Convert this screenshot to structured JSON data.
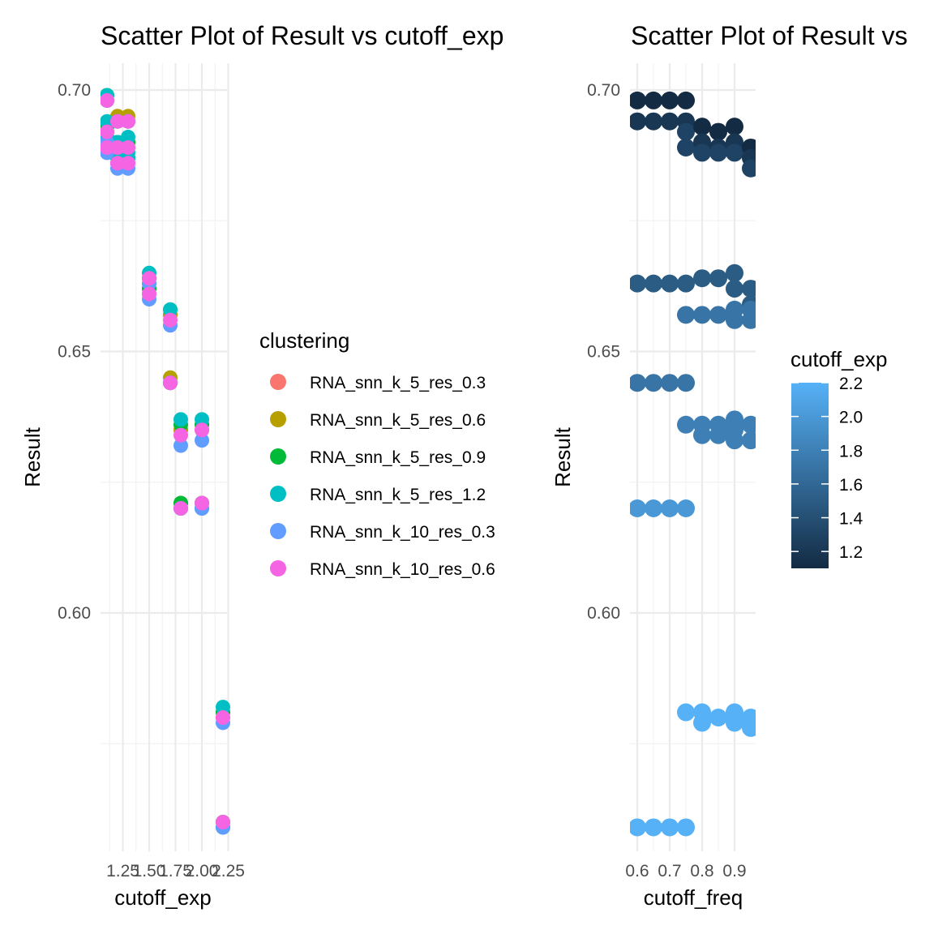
{
  "chart_data": [
    {
      "type": "scatter",
      "title": "Scatter Plot of Result vs cutoff_exp",
      "xlabel": "cutoff_exp",
      "ylabel": "Result",
      "x_ticks": [
        "1.25",
        "1.50",
        "1.75",
        "2.00",
        "2.25"
      ],
      "x_tick_values": [
        1.25,
        1.5,
        1.75,
        2.0,
        2.25
      ],
      "y_ticks": [
        "0.60",
        "0.65",
        "0.70"
      ],
      "y_tick_values": [
        0.6,
        0.65,
        0.7
      ],
      "xlim": [
        1.1,
        2.3
      ],
      "ylim": [
        0.555,
        0.703
      ],
      "legend": {
        "title": "clustering",
        "position": "right",
        "entries": [
          {
            "name": "RNA_snn_k_5_res_0.3",
            "color": "#F8766D"
          },
          {
            "name": "RNA_snn_k_5_res_0.6",
            "color": "#B79F00"
          },
          {
            "name": "RNA_snn_k_5_res_0.9",
            "color": "#00BA38"
          },
          {
            "name": "RNA_snn_k_5_res_1.2",
            "color": "#00BFC4"
          },
          {
            "name": "RNA_snn_k_10_res_0.3",
            "color": "#619CFF"
          },
          {
            "name": "RNA_snn_k_10_res_0.6",
            "color": "#F564E3"
          }
        ]
      },
      "series": [
        {
          "name": "RNA_snn_k_5_res_0.3",
          "color": "#F8766D",
          "x": [
            1.1,
            1.1,
            1.1,
            1.2,
            1.2,
            1.2,
            1.3,
            1.3,
            1.3,
            1.5,
            1.5,
            1.7,
            1.7,
            1.8,
            1.8,
            2.0,
            2.0,
            2.2,
            2.2
          ],
          "y": [
            0.698,
            0.691,
            0.689,
            0.694,
            0.689,
            0.686,
            0.694,
            0.689,
            0.686,
            0.664,
            0.661,
            0.657,
            0.644,
            0.635,
            0.62,
            0.635,
            0.621,
            0.58,
            0.559
          ]
        },
        {
          "name": "RNA_snn_k_5_res_0.6",
          "color": "#B79F00",
          "x": [
            1.1,
            1.1,
            1.1,
            1.2,
            1.2,
            1.2,
            1.3,
            1.3,
            1.3,
            1.5,
            1.5,
            1.7,
            1.7,
            1.8,
            1.8,
            2.0,
            2.0,
            2.2,
            2.2
          ],
          "y": [
            0.699,
            0.692,
            0.689,
            0.695,
            0.69,
            0.687,
            0.695,
            0.69,
            0.687,
            0.664,
            0.662,
            0.657,
            0.645,
            0.635,
            0.621,
            0.636,
            0.621,
            0.581,
            0.56
          ]
        },
        {
          "name": "RNA_snn_k_5_res_0.9",
          "color": "#00BA38",
          "x": [
            1.1,
            1.1,
            1.1,
            1.2,
            1.2,
            1.2,
            1.3,
            1.3,
            1.3,
            1.5,
            1.5,
            1.7,
            1.7,
            1.8,
            1.8,
            2.0,
            2.0,
            2.2,
            2.2
          ],
          "y": [
            0.698,
            0.693,
            0.69,
            0.694,
            0.69,
            0.687,
            0.694,
            0.69,
            0.687,
            0.664,
            0.662,
            0.658,
            0.644,
            0.636,
            0.621,
            0.636,
            0.621,
            0.581,
            0.56
          ]
        },
        {
          "name": "RNA_snn_k_5_res_1.2",
          "color": "#00BFC4",
          "x": [
            1.1,
            1.1,
            1.1,
            1.2,
            1.2,
            1.2,
            1.3,
            1.3,
            1.3,
            1.5,
            1.5,
            1.7,
            1.7,
            1.8,
            1.8,
            2.0,
            2.0,
            2.2,
            2.2
          ],
          "y": [
            0.699,
            0.694,
            0.691,
            0.69,
            0.687,
            0.686,
            0.691,
            0.688,
            0.687,
            0.665,
            0.663,
            0.658,
            0.644,
            0.637,
            0.62,
            0.637,
            0.62,
            0.582,
            0.559
          ]
        },
        {
          "name": "RNA_snn_k_10_res_0.3",
          "color": "#619CFF",
          "x": [
            1.1,
            1.1,
            1.1,
            1.2,
            1.2,
            1.2,
            1.3,
            1.3,
            1.3,
            1.5,
            1.5,
            1.7,
            1.7,
            1.8,
            1.8,
            2.0,
            2.0,
            2.2,
            2.2
          ],
          "y": [
            0.698,
            0.69,
            0.688,
            0.694,
            0.686,
            0.685,
            0.694,
            0.686,
            0.685,
            0.663,
            0.66,
            0.655,
            0.644,
            0.632,
            0.62,
            0.633,
            0.62,
            0.579,
            0.559
          ]
        },
        {
          "name": "RNA_snn_k_10_res_0.6",
          "color": "#F564E3",
          "x": [
            1.1,
            1.1,
            1.1,
            1.2,
            1.2,
            1.2,
            1.3,
            1.3,
            1.3,
            1.5,
            1.5,
            1.7,
            1.7,
            1.8,
            1.8,
            2.0,
            2.0,
            2.2,
            2.2
          ],
          "y": [
            0.698,
            0.692,
            0.689,
            0.694,
            0.689,
            0.686,
            0.694,
            0.689,
            0.686,
            0.664,
            0.661,
            0.656,
            0.644,
            0.634,
            0.62,
            0.635,
            0.621,
            0.58,
            0.56
          ]
        }
      ]
    },
    {
      "type": "scatter",
      "title": "Scatter Plot of Result vs",
      "xlabel": "cutoff_freq",
      "ylabel": "Result",
      "x_ticks": [
        "0.6",
        "0.7",
        "0.8",
        "0.9"
      ],
      "x_tick_values": [
        0.6,
        0.7,
        0.8,
        0.9
      ],
      "y_ticks": [
        "0.60",
        "0.65",
        "0.70"
      ],
      "y_tick_values": [
        0.6,
        0.65,
        0.7
      ],
      "xlim": [
        0.595,
        0.95
      ],
      "ylim": [
        0.555,
        0.703
      ],
      "color_scale": {
        "title": "cutoff_exp",
        "position": "right",
        "low_color": "#132B43",
        "high_color": "#56B1F7",
        "min": 1.1,
        "max": 2.2,
        "ticks": [
          "1.2",
          "1.4",
          "1.6",
          "1.8",
          "2.0",
          "2.2"
        ],
        "tick_values": [
          1.2,
          1.4,
          1.6,
          1.8,
          2.0,
          2.2
        ]
      },
      "points": [
        {
          "x": 0.6,
          "y": 0.698,
          "c": 1.1
        },
        {
          "x": 0.65,
          "y": 0.698,
          "c": 1.1
        },
        {
          "x": 0.7,
          "y": 0.698,
          "c": 1.1
        },
        {
          "x": 0.75,
          "y": 0.698,
          "c": 1.1
        },
        {
          "x": 0.6,
          "y": 0.694,
          "c": 1.2
        },
        {
          "x": 0.65,
          "y": 0.694,
          "c": 1.2
        },
        {
          "x": 0.7,
          "y": 0.694,
          "c": 1.2
        },
        {
          "x": 0.75,
          "y": 0.694,
          "c": 1.2
        },
        {
          "x": 0.75,
          "y": 0.692,
          "c": 1.3
        },
        {
          "x": 0.75,
          "y": 0.689,
          "c": 1.3
        },
        {
          "x": 0.8,
          "y": 0.693,
          "c": 1.1
        },
        {
          "x": 0.8,
          "y": 0.69,
          "c": 1.2
        },
        {
          "x": 0.8,
          "y": 0.688,
          "c": 1.3
        },
        {
          "x": 0.85,
          "y": 0.692,
          "c": 1.1
        },
        {
          "x": 0.85,
          "y": 0.689,
          "c": 1.2
        },
        {
          "x": 0.85,
          "y": 0.688,
          "c": 1.3
        },
        {
          "x": 0.9,
          "y": 0.693,
          "c": 1.1
        },
        {
          "x": 0.9,
          "y": 0.69,
          "c": 1.2
        },
        {
          "x": 0.9,
          "y": 0.688,
          "c": 1.3
        },
        {
          "x": 0.95,
          "y": 0.689,
          "c": 1.1
        },
        {
          "x": 0.95,
          "y": 0.687,
          "c": 1.2
        },
        {
          "x": 0.95,
          "y": 0.685,
          "c": 1.3
        },
        {
          "x": 0.6,
          "y": 0.663,
          "c": 1.5
        },
        {
          "x": 0.65,
          "y": 0.663,
          "c": 1.5
        },
        {
          "x": 0.7,
          "y": 0.663,
          "c": 1.5
        },
        {
          "x": 0.75,
          "y": 0.663,
          "c": 1.5
        },
        {
          "x": 0.8,
          "y": 0.664,
          "c": 1.5
        },
        {
          "x": 0.85,
          "y": 0.664,
          "c": 1.5
        },
        {
          "x": 0.9,
          "y": 0.665,
          "c": 1.5
        },
        {
          "x": 0.9,
          "y": 0.662,
          "c": 1.5
        },
        {
          "x": 0.95,
          "y": 0.662,
          "c": 1.5
        },
        {
          "x": 0.95,
          "y": 0.659,
          "c": 1.5
        },
        {
          "x": 0.75,
          "y": 0.657,
          "c": 1.7
        },
        {
          "x": 0.8,
          "y": 0.657,
          "c": 1.7
        },
        {
          "x": 0.85,
          "y": 0.657,
          "c": 1.7
        },
        {
          "x": 0.9,
          "y": 0.658,
          "c": 1.7
        },
        {
          "x": 0.9,
          "y": 0.656,
          "c": 1.7
        },
        {
          "x": 0.95,
          "y": 0.658,
          "c": 1.7
        },
        {
          "x": 0.95,
          "y": 0.656,
          "c": 1.7
        },
        {
          "x": 0.6,
          "y": 0.644,
          "c": 1.7
        },
        {
          "x": 0.65,
          "y": 0.644,
          "c": 1.7
        },
        {
          "x": 0.7,
          "y": 0.644,
          "c": 1.7
        },
        {
          "x": 0.75,
          "y": 0.644,
          "c": 1.7
        },
        {
          "x": 0.75,
          "y": 0.636,
          "c": 1.8
        },
        {
          "x": 0.8,
          "y": 0.636,
          "c": 1.8
        },
        {
          "x": 0.8,
          "y": 0.634,
          "c": 1.8
        },
        {
          "x": 0.85,
          "y": 0.636,
          "c": 1.8
        },
        {
          "x": 0.85,
          "y": 0.634,
          "c": 1.8
        },
        {
          "x": 0.9,
          "y": 0.637,
          "c": 1.8
        },
        {
          "x": 0.9,
          "y": 0.635,
          "c": 1.8
        },
        {
          "x": 0.9,
          "y": 0.633,
          "c": 1.8
        },
        {
          "x": 0.95,
          "y": 0.636,
          "c": 1.8
        },
        {
          "x": 0.95,
          "y": 0.633,
          "c": 1.8
        },
        {
          "x": 0.6,
          "y": 0.62,
          "c": 2.0
        },
        {
          "x": 0.65,
          "y": 0.62,
          "c": 2.0
        },
        {
          "x": 0.7,
          "y": 0.62,
          "c": 2.0
        },
        {
          "x": 0.75,
          "y": 0.62,
          "c": 2.0
        },
        {
          "x": 0.75,
          "y": 0.581,
          "c": 2.2
        },
        {
          "x": 0.8,
          "y": 0.581,
          "c": 2.2
        },
        {
          "x": 0.8,
          "y": 0.579,
          "c": 2.2
        },
        {
          "x": 0.85,
          "y": 0.58,
          "c": 2.2
        },
        {
          "x": 0.9,
          "y": 0.581,
          "c": 2.2
        },
        {
          "x": 0.9,
          "y": 0.579,
          "c": 2.2
        },
        {
          "x": 0.95,
          "y": 0.58,
          "c": 2.2
        },
        {
          "x": 0.95,
          "y": 0.578,
          "c": 2.2
        },
        {
          "x": 0.6,
          "y": 0.559,
          "c": 2.2
        },
        {
          "x": 0.65,
          "y": 0.559,
          "c": 2.2
        },
        {
          "x": 0.7,
          "y": 0.559,
          "c": 2.2
        },
        {
          "x": 0.75,
          "y": 0.559,
          "c": 2.2
        }
      ]
    }
  ]
}
